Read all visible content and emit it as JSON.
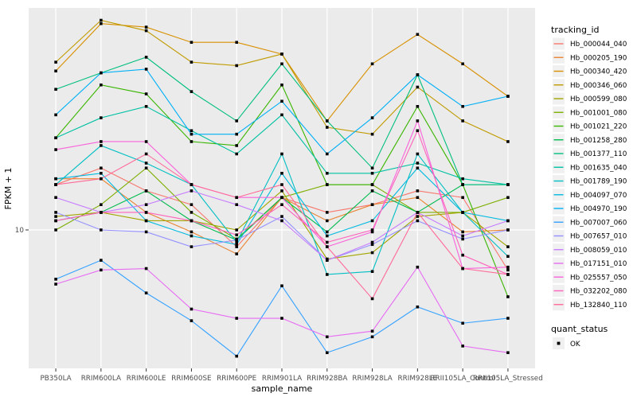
{
  "figure": {
    "y_axis": {
      "title": "FPKM + 1",
      "tick_labels": [
        "10"
      ]
    },
    "x_axis": {
      "title": "sample_name"
    },
    "legend": {
      "tracking_title": "tracking_id",
      "quant_title": "quant_status",
      "quant_items": [
        {
          "label": "OK",
          "marker": "filled-black-square"
        }
      ]
    },
    "colors": {
      "panel_bg": "#EBEBEB",
      "grid": "#FFFFFF",
      "legend_key_bg": "#F0F0F0",
      "point": "#000000",
      "axis_text": "#4D4D4D",
      "tick_mark": "#333333"
    }
  },
  "chart_data": {
    "type": "line",
    "title": "",
    "xlabel": "sample_name",
    "ylabel": "FPKM + 1",
    "y_scale": "log10",
    "ylim": [
      2.3,
      110
    ],
    "grid": true,
    "legend_position": "right",
    "point_shape": "filled-square",
    "quant_status": "OK",
    "categories": [
      "PB350LA",
      "RRIM600LA",
      "RRIM600LE",
      "RRIM600SE",
      "RRIM600PE",
      "RRIM901LA",
      "RRIM928BA",
      "RRIM928LA",
      "RRIM928LE",
      "RRII105LA_Control",
      "RRII105LA_Stressed"
    ],
    "series": [
      {
        "name": "Hb_000044_040",
        "color": "#F8766D",
        "values": [
          16,
          19,
          15,
          13,
          8.4,
          14,
          12,
          13,
          15,
          14,
          6.6
        ]
      },
      {
        "name": "Hb_000205_190",
        "color": "#EA8331",
        "values": [
          17,
          17,
          12,
          9.8,
          7.8,
          14,
          11,
          13,
          14,
          9.8,
          10
        ]
      },
      {
        "name": "Hb_000340_420",
        "color": "#D89000",
        "values": [
          52,
          85,
          82,
          70,
          70,
          62,
          31,
          56,
          76,
          56,
          40
        ]
      },
      {
        "name": "Hb_000346_060",
        "color": "#C09B00",
        "values": [
          57,
          88,
          79,
          57,
          55,
          62,
          29,
          27,
          44,
          31,
          25
        ]
      },
      {
        "name": "Hb_000599_080",
        "color": "#A3A500",
        "values": [
          11.5,
          12,
          11,
          11,
          10,
          15,
          7.4,
          7.9,
          11.5,
          12,
          8.4
        ]
      },
      {
        "name": "Hb_001001_080",
        "color": "#7CAE00",
        "values": [
          10,
          13,
          19,
          12,
          9.1,
          14,
          16,
          16,
          12,
          12,
          14
        ]
      },
      {
        "name": "Hb_001021_220",
        "color": "#39B600",
        "values": [
          26,
          45,
          41,
          25,
          24,
          45,
          16,
          16,
          36,
          16,
          5
        ]
      },
      {
        "name": "Hb_001258_280",
        "color": "#00BB4E",
        "values": [
          11,
          12,
          15,
          11,
          9,
          14,
          9.8,
          15,
          12,
          16,
          16
        ]
      },
      {
        "name": "Hb_001377_110",
        "color": "#00BF7D",
        "values": [
          43,
          51,
          60,
          42,
          31,
          56,
          31,
          19,
          50,
          16,
          16
        ]
      },
      {
        "name": "Hb_001635_040",
        "color": "#00C1A3",
        "values": [
          26,
          32,
          36,
          28,
          22,
          33,
          18,
          18,
          20,
          17,
          16
        ]
      },
      {
        "name": "Hb_001789_190",
        "color": "#00BFC4",
        "values": [
          16,
          24,
          20,
          16,
          8.8,
          22,
          6.3,
          6.5,
          22,
          12,
          7.6
        ]
      },
      {
        "name": "Hb_004097_070",
        "color": "#00BAE0",
        "values": [
          17,
          18,
          11,
          9.4,
          8.6,
          18,
          9.4,
          11,
          19,
          12,
          11
        ]
      },
      {
        "name": "Hb_004970_190",
        "color": "#00B0F6",
        "values": [
          33,
          51,
          53,
          27,
          27,
          38,
          22,
          32,
          50,
          36,
          40
        ]
      },
      {
        "name": "Hb_007007_060",
        "color": "#35A2FF",
        "values": [
          6,
          7.3,
          5.2,
          3.9,
          2.7,
          5.6,
          2.8,
          3.3,
          4.5,
          3.8,
          4
        ]
      },
      {
        "name": "Hb_007657_010",
        "color": "#9590FF",
        "values": [
          12,
          10,
          9.8,
          8.4,
          9,
          11.5,
          7.3,
          8.6,
          11,
          9.1,
          10
        ]
      },
      {
        "name": "Hb_008059_010",
        "color": "#C77CFF",
        "values": [
          14,
          12,
          13,
          15,
          13,
          11,
          7.3,
          8.8,
          12,
          9.4,
          11
        ]
      },
      {
        "name": "Hb_017151_010",
        "color": "#E76BF3",
        "values": [
          5.7,
          6.6,
          6.7,
          4.4,
          4,
          4,
          3.3,
          3.5,
          6.8,
          3,
          2.8
        ]
      },
      {
        "name": "Hb_025557_050",
        "color": "#FA62DB",
        "values": [
          23,
          25,
          25,
          16,
          14,
          14,
          8.4,
          9.8,
          31,
          6.7,
          6.8
        ]
      },
      {
        "name": "Hb_032202_080",
        "color": "#FF62BC",
        "values": [
          11,
          12,
          12,
          11,
          9.5,
          13,
          8.8,
          10,
          28,
          7.7,
          6.3
        ]
      },
      {
        "name": "Hb_132840_110",
        "color": "#FF6A98",
        "values": [
          16,
          17,
          22,
          16,
          14,
          16,
          8.4,
          4.9,
          12,
          6.7,
          6.3
        ]
      }
    ]
  }
}
